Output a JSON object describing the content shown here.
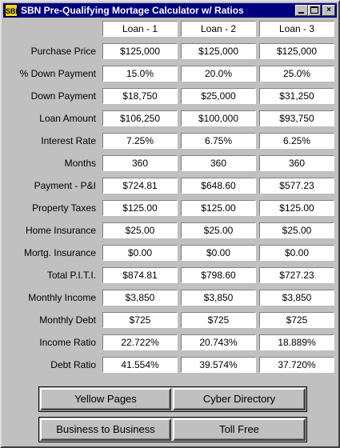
{
  "window": {
    "title": "SBN Pre-Qualifying Mortage Calculator w/ Ratios",
    "icon_text": "SBN",
    "controls": [
      "minimize-icon",
      "maximize-icon",
      "close-icon"
    ],
    "colors": {
      "titlebar": "#000080",
      "face": "#c0c0c0",
      "icon": "#f2d21a"
    }
  },
  "columns": [
    "Loan - 1",
    "Loan - 2",
    "Loan - 3"
  ],
  "rows": [
    {
      "label": "Purchase Price",
      "values": [
        "$125,000",
        "$125,000",
        "$125,000"
      ]
    },
    {
      "label": "% Down Payment",
      "values": [
        "15.0%",
        "20.0%",
        "25.0%"
      ]
    },
    {
      "label": "Down Payment",
      "values": [
        "$18,750",
        "$25,000",
        "$31,250"
      ]
    },
    {
      "label": "Loan Amount",
      "values": [
        "$106,250",
        "$100,000",
        "$93,750"
      ]
    },
    {
      "label": "Interest Rate",
      "values": [
        "7.25%",
        "6.75%",
        "6.25%"
      ]
    },
    {
      "label": "Months",
      "values": [
        "360",
        "360",
        "360"
      ]
    },
    {
      "label": "Payment - P&I",
      "values": [
        "$724.81",
        "$648.60",
        "$577.23"
      ]
    },
    {
      "label": "Property Taxes",
      "values": [
        "$125.00",
        "$125.00",
        "$125.00"
      ]
    },
    {
      "label": "Home Insurance",
      "values": [
        "$25.00",
        "$25.00",
        "$25.00"
      ]
    },
    {
      "label": "Mortg. Insurance",
      "values": [
        "$0.00",
        "$0.00",
        "$0.00"
      ]
    },
    {
      "label": "Total P.I.T.I.",
      "values": [
        "$874.81",
        "$798.60",
        "$727.23"
      ]
    },
    {
      "label": "Monthly Income",
      "values": [
        "$3,850",
        "$3,850",
        "$3,850"
      ]
    },
    {
      "label": "Monthly Debt",
      "values": [
        "$725",
        "$725",
        "$725"
      ]
    },
    {
      "label": "Income Ratio",
      "values": [
        "22.722%",
        "20.743%",
        "18.889%"
      ]
    },
    {
      "label": "Debt Ratio",
      "values": [
        "41.554%",
        "39.574%",
        "37.720%"
      ]
    }
  ],
  "buttons": {
    "yellow_pages": "Yellow Pages",
    "cyber_directory": "Cyber Directory",
    "business_to_business": "Business to Business",
    "toll_free": "Toll Free"
  }
}
